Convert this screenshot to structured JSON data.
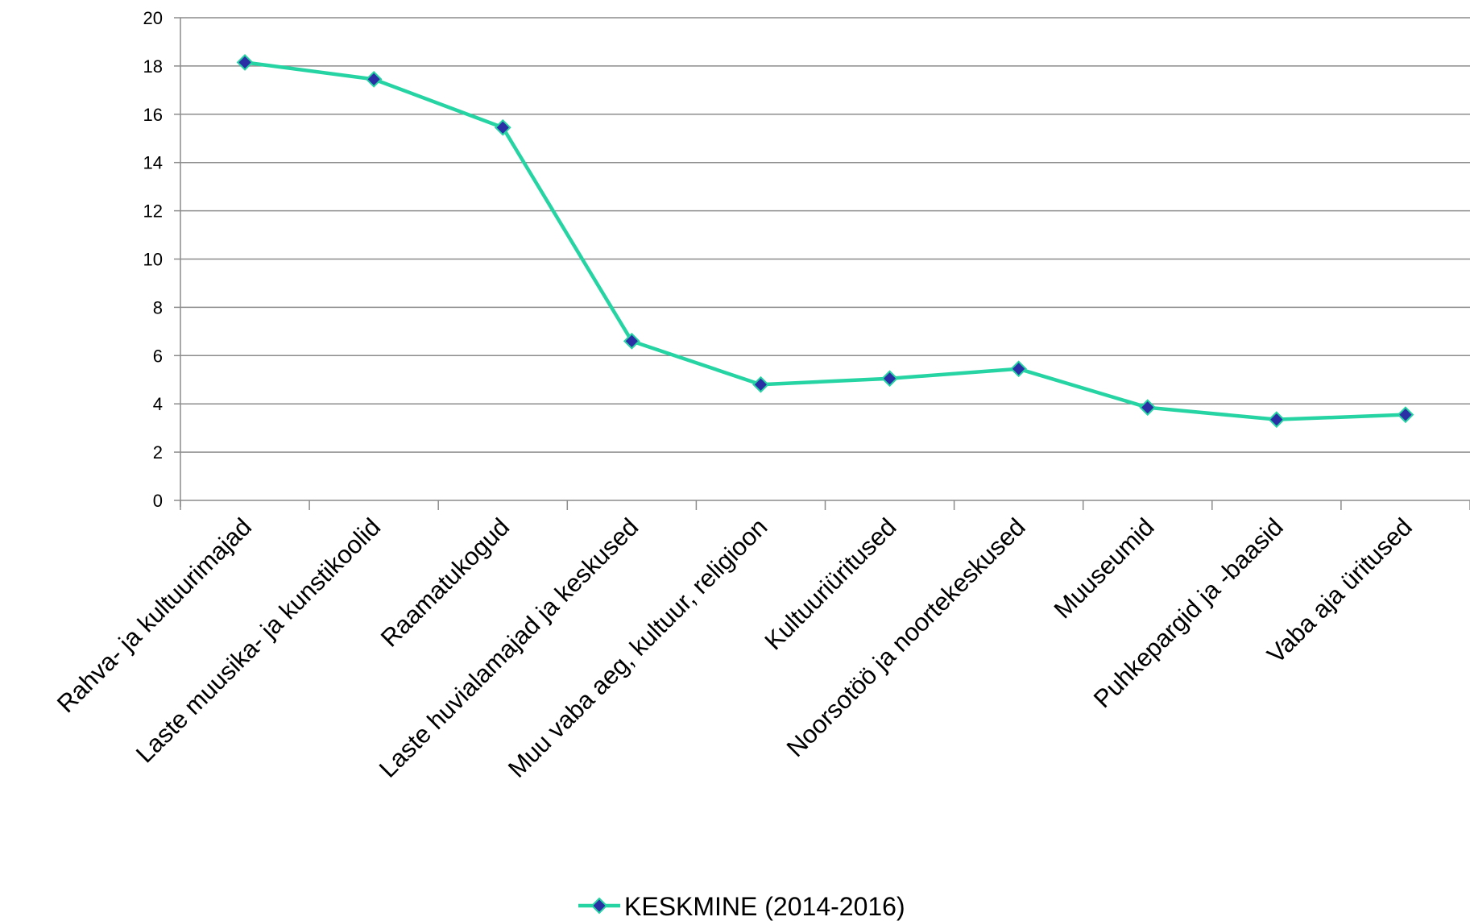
{
  "chart_data": {
    "type": "line",
    "title": "",
    "xlabel": "",
    "ylabel": "",
    "ylim": [
      0,
      20
    ],
    "yticks": [
      0,
      2,
      4,
      6,
      8,
      10,
      12,
      14,
      16,
      18,
      20
    ],
    "grid": true,
    "legend_position": "bottom",
    "categories": [
      "Rahva- ja kultuurimajad",
      "Laste muusika- ja kunstikoolid",
      "Raamatukogud",
      "Laste huvialamajad ja keskused",
      "Muu vaba aeg, kultuur, religioon",
      "Kultuuriüritused",
      "Noorsotöö ja noortekeskused",
      "Muuseumid",
      "Puhkepargid ja -baasid",
      "Vaba aja üritused"
    ],
    "series": [
      {
        "name": "KESKMINE (2014-2016)",
        "values": [
          18.15,
          17.45,
          15.45,
          6.6,
          4.8,
          5.05,
          5.45,
          3.85,
          3.35,
          3.55
        ],
        "line_color": "#26d4a3",
        "marker_color": "#2b2fa6"
      }
    ]
  }
}
